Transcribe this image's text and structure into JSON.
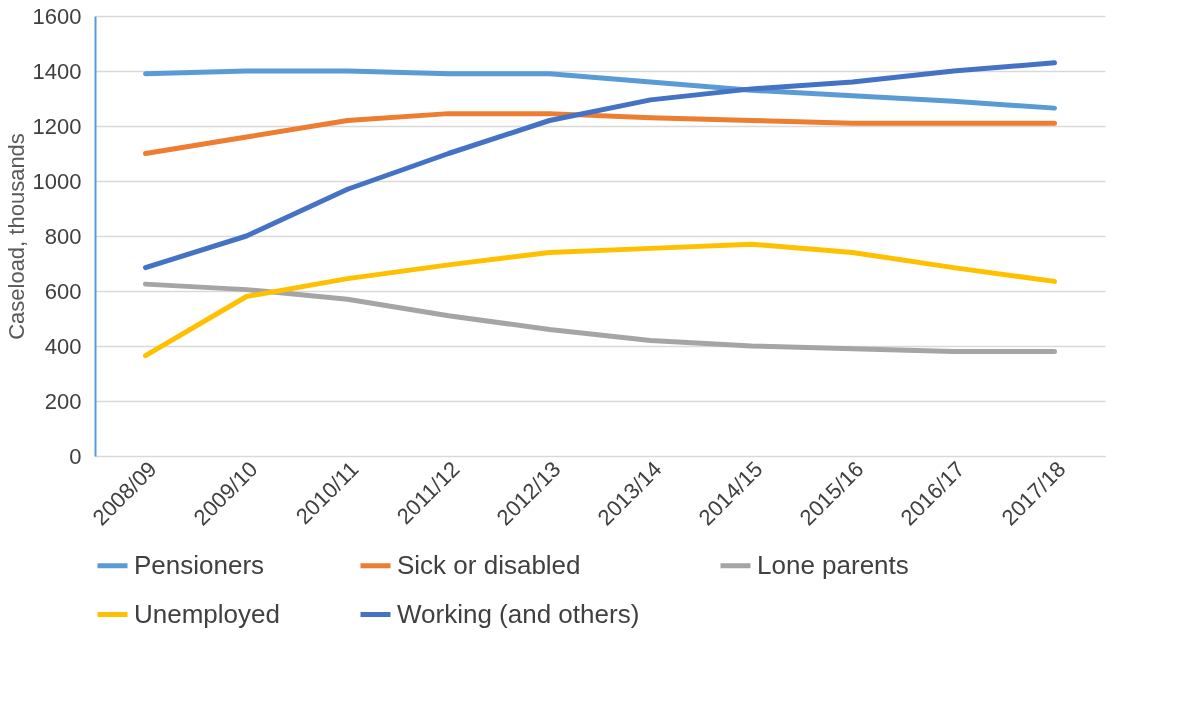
{
  "chart_data": {
    "type": "line",
    "ylabel": "Caseload, thousands",
    "categories": [
      "2008/09",
      "2009/10",
      "2010/11",
      "2011/12",
      "2012/13",
      "2013/14",
      "2014/15",
      "2015/16",
      "2016/17",
      "2017/18"
    ],
    "series": [
      {
        "name": "Pensioners",
        "color": "#5b9bd5",
        "values": [
          1390,
          1400,
          1400,
          1390,
          1390,
          1360,
          1330,
          1310,
          1290,
          1265
        ]
      },
      {
        "name": "Sick or disabled",
        "color": "#ed7d31",
        "values": [
          1100,
          1160,
          1220,
          1245,
          1245,
          1230,
          1220,
          1210,
          1210,
          1210
        ]
      },
      {
        "name": "Lone parents",
        "color": "#a5a5a5",
        "values": [
          625,
          605,
          570,
          510,
          460,
          420,
          400,
          390,
          380,
          380
        ]
      },
      {
        "name": "Unemployed",
        "color": "#ffc000",
        "values": [
          365,
          580,
          645,
          695,
          740,
          755,
          770,
          740,
          685,
          635
        ]
      },
      {
        "name": "Working (and others)",
        "color": "#4472c4",
        "values": [
          685,
          800,
          970,
          1100,
          1220,
          1295,
          1335,
          1360,
          1400,
          1430
        ]
      }
    ],
    "ylim": [
      0,
      1600
    ],
    "yticks": [
      0,
      200,
      400,
      600,
      800,
      1000,
      1200,
      1400,
      1600
    ],
    "grid": "y",
    "legend": "bottom",
    "marker": "none",
    "line_style": "solid"
  }
}
